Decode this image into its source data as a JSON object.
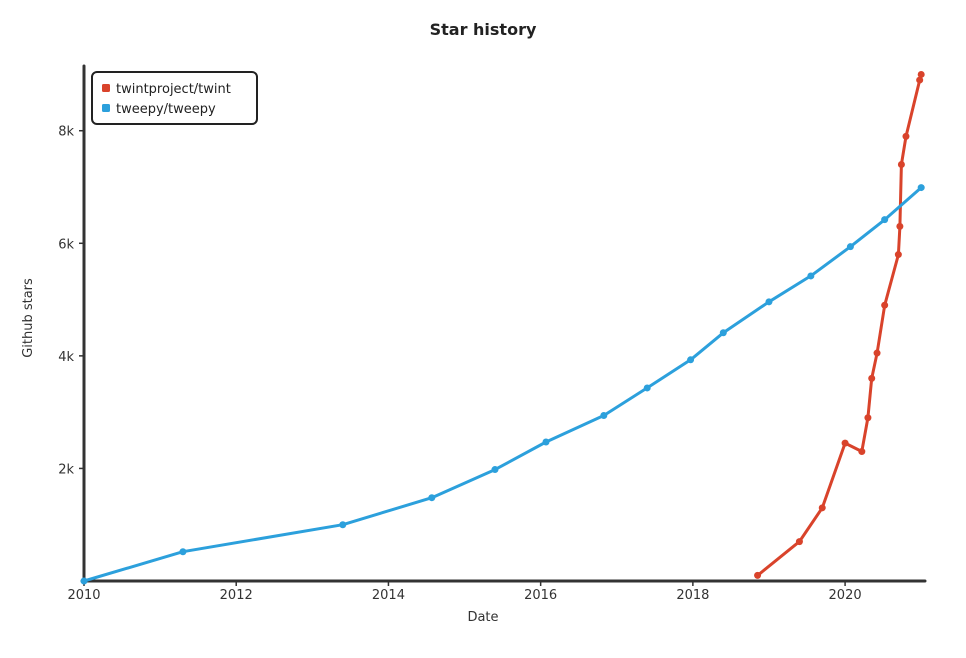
{
  "chart_data": {
    "type": "line",
    "title": "Star history",
    "xlabel": "Date",
    "ylabel": "Github stars",
    "xlim": [
      2010,
      2021.05
    ],
    "ylim": [
      0,
      9150
    ],
    "x_ticks": [
      2010,
      2012,
      2014,
      2016,
      2018,
      2020
    ],
    "x_tick_labels": [
      "2010",
      "2012",
      "2014",
      "2016",
      "2018",
      "2020"
    ],
    "y_ticks": [
      2000,
      4000,
      6000,
      8000
    ],
    "y_tick_labels": [
      "2k",
      "4k",
      "6k",
      "8k"
    ],
    "legend_position": "top-left",
    "series": [
      {
        "name": "twintproject/twint",
        "color": "#d9432b",
        "x": [
          2018.85,
          2019.4,
          2019.7,
          2020.0,
          2020.22,
          2020.3,
          2020.35,
          2020.42,
          2020.52,
          2020.7,
          2020.72,
          2020.74,
          2020.8,
          2020.98,
          2021.0
        ],
        "y": [
          100,
          700,
          1300,
          2450,
          2300,
          2900,
          3600,
          4050,
          4900,
          5800,
          6300,
          7400,
          7900,
          8900,
          9000
        ]
      },
      {
        "name": "tweepy/tweepy",
        "color": "#2ca0dc",
        "x": [
          2010.0,
          2011.3,
          2013.4,
          2014.57,
          2015.4,
          2016.07,
          2016.83,
          2017.4,
          2017.97,
          2018.4,
          2019.0,
          2019.55,
          2020.07,
          2020.52,
          2021.0
        ],
        "y": [
          0,
          520,
          1000,
          1480,
          1980,
          2470,
          2940,
          3430,
          3930,
          4410,
          4960,
          5420,
          5940,
          6420,
          6990
        ]
      }
    ]
  }
}
